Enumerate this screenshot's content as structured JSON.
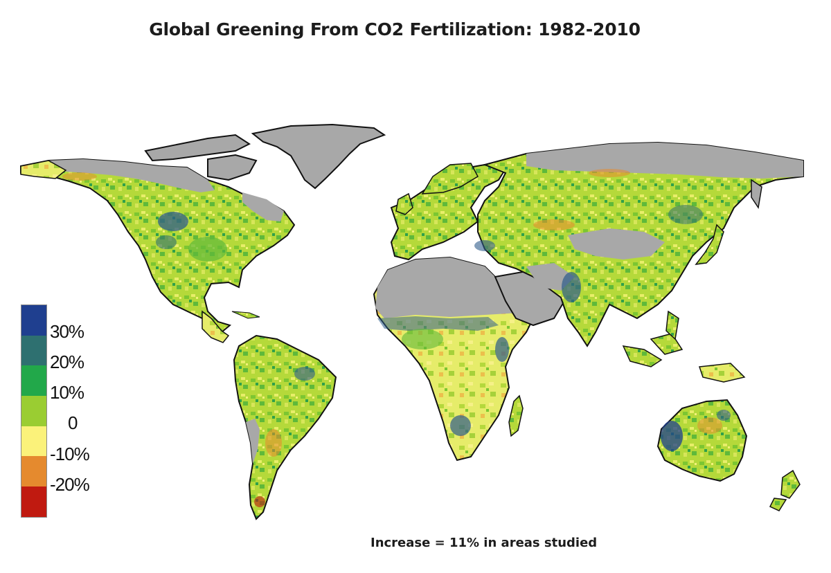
{
  "title": "Global Greening From CO2 Fertilization: 1982-2010",
  "footnote": "Increase = 11% in areas studied",
  "legend": {
    "labels": [
      "30%",
      "20%",
      "10%",
      "0",
      "-10%",
      "-20%"
    ],
    "colors": [
      "#1f3f8f",
      "#2e7070",
      "#22a84a",
      "#9acd32",
      "#fbf27a",
      "#e58a2e",
      "#c01a10"
    ]
  },
  "map": {
    "ocean_color": "#ffffff",
    "no_data_color": "#a8a8a8",
    "coastline_color": "#111111"
  }
}
